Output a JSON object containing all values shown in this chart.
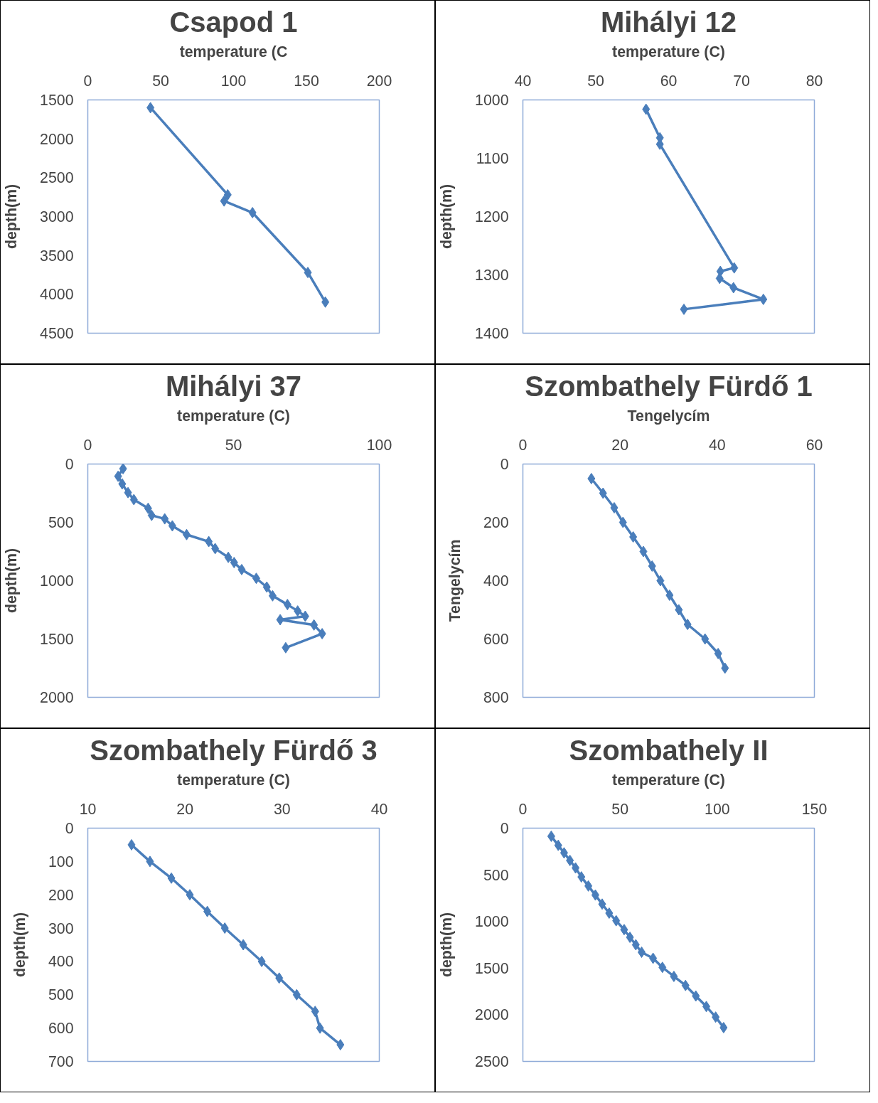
{
  "chart_data": [
    {
      "type": "line",
      "title": "Csapod 1",
      "xlabel": "temperature (C",
      "ylabel": "depth(m)",
      "marker": "diamond",
      "xlim": [
        0,
        200
      ],
      "xticks": [
        0,
        50,
        100,
        150,
        200
      ],
      "ylim": [
        4500,
        1500
      ],
      "yticks": [
        1500,
        2000,
        2500,
        3000,
        3500,
        4000,
        4500
      ],
      "series": [
        {
          "color": "#4a7ebb",
          "x": [
            43,
            96,
            93.5,
            113,
            151,
            163
          ],
          "values": [
            1600,
            2720,
            2800,
            2950,
            3720,
            4100
          ]
        }
      ]
    },
    {
      "type": "line",
      "title": "Mihályi 12",
      "xlabel": "temperature (C)",
      "ylabel": "depth(m)",
      "marker": "diamond",
      "xlim": [
        40,
        80
      ],
      "xticks": [
        40,
        50,
        60,
        70,
        80
      ],
      "ylim": [
        1400,
        1000
      ],
      "yticks": [
        1000,
        1100,
        1200,
        1300,
        1400
      ],
      "series": [
        {
          "color": "#4a7ebb",
          "x": [
            56.9,
            58.8,
            58.8,
            69.0,
            67.1,
            67.0,
            68.9,
            73.0,
            62.1
          ],
          "values": [
            1016,
            1065,
            1076,
            1288,
            1294,
            1306,
            1322,
            1342,
            1359
          ]
        }
      ]
    },
    {
      "type": "line",
      "title": "Mihályi 37",
      "xlabel": "temperature (C)",
      "ylabel": "depth(m)",
      "marker": "diamond",
      "xlim": [
        0,
        100
      ],
      "xticks": [
        0,
        50,
        100
      ],
      "ylim": [
        2000,
        0
      ],
      "yticks": [
        0,
        500,
        1000,
        1500,
        2000
      ],
      "series": [
        {
          "color": "#4a7ebb",
          "x": [
            12.1,
            10.4,
            11.8,
            13.8,
            15.8,
            20.7,
            21.9,
            26.4,
            29.0,
            33.9,
            41.5,
            43.7,
            48.2,
            50.2,
            52.8,
            57.8,
            61.4,
            63.4,
            68.5,
            72.0,
            74.6,
            66.0,
            77.6,
            80.4,
            67.9
          ],
          "values": [
            40,
            105,
            170,
            245,
            305,
            380,
            440,
            470,
            530,
            605,
            665,
            725,
            800,
            845,
            905,
            980,
            1055,
            1130,
            1205,
            1260,
            1305,
            1335,
            1380,
            1455,
            1575
          ]
        }
      ]
    },
    {
      "type": "line",
      "title": "Szombathely Fürdő 1",
      "xlabel": "Tengelycím",
      "ylabel": "Tengelycím",
      "marker": "diamond",
      "xlim": [
        0,
        60
      ],
      "xticks": [
        0,
        20,
        40,
        60
      ],
      "ylim": [
        800,
        0
      ],
      "yticks": [
        0,
        200,
        400,
        600,
        800
      ],
      "series": [
        {
          "color": "#4a7ebb",
          "x": [
            14.1,
            16.5,
            18.8,
            20.6,
            22.7,
            24.8,
            26.6,
            28.3,
            30.2,
            32.1,
            33.9,
            37.5,
            40.2,
            41.6
          ],
          "values": [
            50,
            100,
            150,
            200,
            250,
            300,
            350,
            400,
            450,
            500,
            550,
            600,
            650,
            700
          ]
        }
      ]
    },
    {
      "type": "line",
      "title": "Szombathely Fürdő 3",
      "xlabel": "temperature (C)",
      "ylabel": "depth(m)",
      "marker": "diamond",
      "xlim": [
        10,
        40
      ],
      "xticks": [
        10,
        20,
        30,
        40
      ],
      "ylim": [
        700,
        0
      ],
      "yticks": [
        0,
        100,
        200,
        300,
        400,
        500,
        600,
        700
      ],
      "series": [
        {
          "color": "#4a7ebb",
          "x": [
            14.5,
            16.4,
            18.6,
            20.5,
            22.3,
            24.1,
            26.0,
            27.9,
            29.7,
            31.5,
            33.4,
            33.9,
            36.0
          ],
          "values": [
            50,
            100,
            150,
            200,
            250,
            300,
            350,
            400,
            450,
            500,
            550,
            600,
            650
          ]
        }
      ]
    },
    {
      "type": "line",
      "title": "Szombathely II",
      "xlabel": "temperature (C)",
      "ylabel": "depth(m)",
      "marker": "diamond",
      "xlim": [
        0,
        150
      ],
      "xticks": [
        0,
        50,
        100,
        150
      ],
      "ylim": [
        2500,
        0
      ],
      "yticks": [
        0,
        500,
        1000,
        1500,
        2000,
        2500
      ],
      "series": [
        {
          "color": "#4a7ebb",
          "x": [
            14.6,
            18.2,
            21.2,
            24.2,
            27.1,
            30.1,
            33.7,
            37.3,
            40.8,
            44.4,
            48.0,
            52.1,
            55.1,
            58.1,
            61.1,
            67.0,
            71.8,
            77.7,
            83.7,
            89.0,
            94.4,
            99.2,
            103.3
          ],
          "values": [
            87,
            184,
            265,
            346,
            426,
            523,
            620,
            717,
            814,
            911,
            992,
            1088,
            1170,
            1250,
            1330,
            1395,
            1492,
            1589,
            1686,
            1799,
            1912,
            2025,
            2138
          ]
        }
      ]
    }
  ]
}
